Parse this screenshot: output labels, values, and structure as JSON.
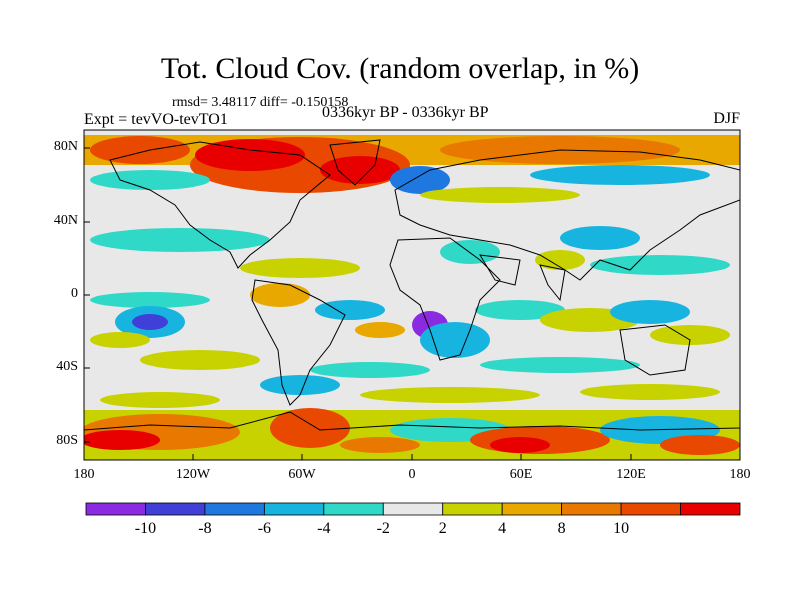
{
  "title": "Tot. Cloud Cov. (random overlap, in %)",
  "stats_line": "rmsd= 3.48117 diff= -0.150158",
  "experiment_line": "Expt = tevVO-tevTO1",
  "period_line": "0336kyr BP - 0336kyr BP",
  "season": "DJF",
  "map": {
    "lat_labels": [
      "80N",
      "40N",
      "0",
      "40S",
      "80S"
    ],
    "lon_labels": [
      "180",
      "120W",
      "60W",
      "0",
      "60E",
      "120E",
      "180"
    ]
  },
  "colorbar": {
    "labels": [
      "-10",
      "-8",
      "-6",
      "-4",
      "-2",
      "2",
      "4",
      "8",
      "10"
    ],
    "colors": [
      "#8a2be2",
      "#4040d8",
      "#1e78e0",
      "#18b4e0",
      "#30d8c8",
      "#e8e8e8",
      "#c8d200",
      "#e8a800",
      "#e87800",
      "#e84800",
      "#e80000"
    ]
  },
  "palette": {
    "ocean_bg": "#e8e8e8",
    "coast": "#000000"
  }
}
